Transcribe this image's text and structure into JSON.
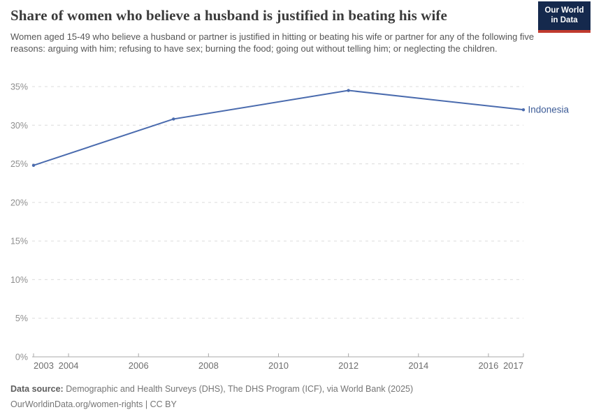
{
  "header": {
    "logo": {
      "line1": "Our World",
      "line2": "in Data",
      "bg_color": "#15294d",
      "stripe_color": "#c03a2e"
    }
  },
  "chart_data": {
    "type": "line",
    "title": "Share of women who believe a husband is justified in beating his wife",
    "subtitle": "Women aged 15-49 who believe a husband or partner is justified in hitting or beating his wife or partner for any of the following five reasons: arguing with him; refusing to have sex; burning the food; going out without telling him; or neglecting the children.",
    "series": [
      {
        "name": "Indonesia",
        "color": "#4a6bae",
        "label_color": "#3d5c97",
        "points": [
          [
            2003,
            24.8
          ],
          [
            2007,
            30.8
          ],
          [
            2012,
            34.5
          ],
          [
            2017,
            32.0
          ]
        ]
      }
    ],
    "x_ticks": [
      2003,
      2004,
      2006,
      2008,
      2010,
      2012,
      2014,
      2016,
      2017
    ],
    "y_ticks": [
      0,
      5,
      10,
      15,
      20,
      25,
      30,
      35
    ],
    "y_tick_suffix": "%",
    "xlim": [
      2003,
      2017
    ],
    "ylim": [
      0,
      35
    ],
    "grid": "horizontal dashed",
    "legend_position": "end-of-line label",
    "colors": {
      "gridline": "#dcdcdc",
      "axis": "#a8a8a8",
      "y_tick_label": "#8f8f8f",
      "x_tick_label": "#6e6e6e"
    }
  },
  "footer": {
    "data_source_label": "Data source:",
    "data_source_text": "Demographic and Health Surveys (DHS), The DHS Program (ICF), via World Bank (2025)",
    "link_line": "OurWorldinData.org/women-rights | CC BY"
  }
}
